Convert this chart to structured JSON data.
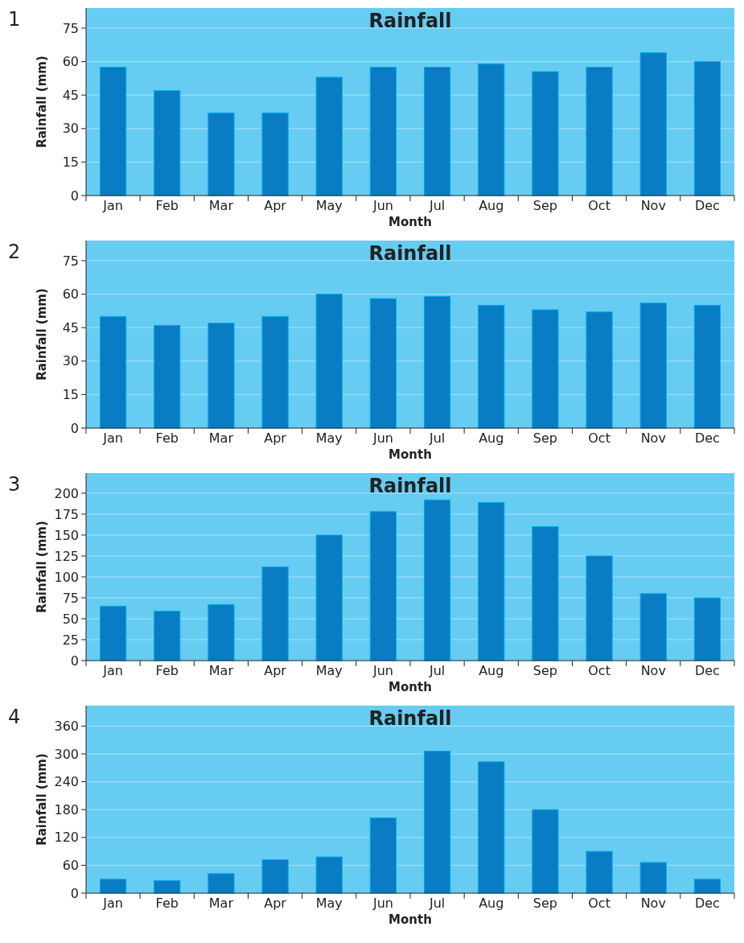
{
  "chart_data": [
    {
      "type": "bar",
      "title": "Rainfall",
      "annotations": [
        "1"
      ],
      "xlabel": "Month",
      "ylabel": "Rainfall (mm)",
      "categories": [
        "Jan",
        "Feb",
        "Mar",
        "Apr",
        "May",
        "Jun",
        "Jul",
        "Aug",
        "Sep",
        "Oct",
        "Nov",
        "Dec"
      ],
      "values": [
        57.5,
        47,
        37,
        37,
        53,
        57.5,
        57.5,
        59,
        55.5,
        57.5,
        64,
        60
      ],
      "color": "#0a7cc4",
      "ylim": [
        0,
        84
      ],
      "yticks": [
        0,
        15,
        30,
        45,
        60,
        75
      ],
      "grid": "y"
    },
    {
      "type": "bar",
      "title": "Rainfall",
      "annotations": [
        "2"
      ],
      "xlabel": "Month",
      "ylabel": "Rainfall (mm)",
      "categories": [
        "Jan",
        "Feb",
        "Mar",
        "Apr",
        "May",
        "Jun",
        "Jul",
        "Aug",
        "Sep",
        "Oct",
        "Nov",
        "Dec"
      ],
      "values": [
        50,
        46,
        47,
        50,
        60,
        58,
        59,
        55,
        53,
        52,
        56,
        55
      ],
      "color": "#0a7cc4",
      "ylim": [
        0,
        84
      ],
      "yticks": [
        0,
        15,
        30,
        45,
        60,
        75
      ],
      "grid": "y"
    },
    {
      "type": "bar",
      "title": "Rainfall",
      "annotations": [
        "3"
      ],
      "xlabel": "Month",
      "ylabel": "Rainfall (mm)",
      "categories": [
        "Jan",
        "Feb",
        "Mar",
        "Apr",
        "May",
        "Jun",
        "Jul",
        "Aug",
        "Sep",
        "Oct",
        "Nov",
        "Dec"
      ],
      "values": [
        65,
        59,
        67,
        112,
        150,
        178,
        192,
        189,
        160,
        125,
        80,
        75
      ],
      "color": "#0a7cc4",
      "ylim": [
        0,
        224
      ],
      "yticks": [
        0,
        25,
        50,
        75,
        100,
        125,
        150,
        175,
        200
      ],
      "grid": "y"
    },
    {
      "type": "bar",
      "title": "Rainfall",
      "annotations": [
        "4"
      ],
      "xlabel": "Month",
      "ylabel": "Rainfall (mm)",
      "categories": [
        "Jan",
        "Feb",
        "Mar",
        "Apr",
        "May",
        "Jun",
        "Jul",
        "Aug",
        "Sep",
        "Oct",
        "Nov",
        "Dec"
      ],
      "values": [
        30,
        27,
        42,
        72,
        78,
        162,
        306,
        283,
        180,
        90,
        66,
        30
      ],
      "color": "#0a7cc4",
      "ylim": [
        0,
        404
      ],
      "yticks": [
        0,
        60,
        120,
        180,
        240,
        300,
        360
      ],
      "grid": "y"
    }
  ]
}
